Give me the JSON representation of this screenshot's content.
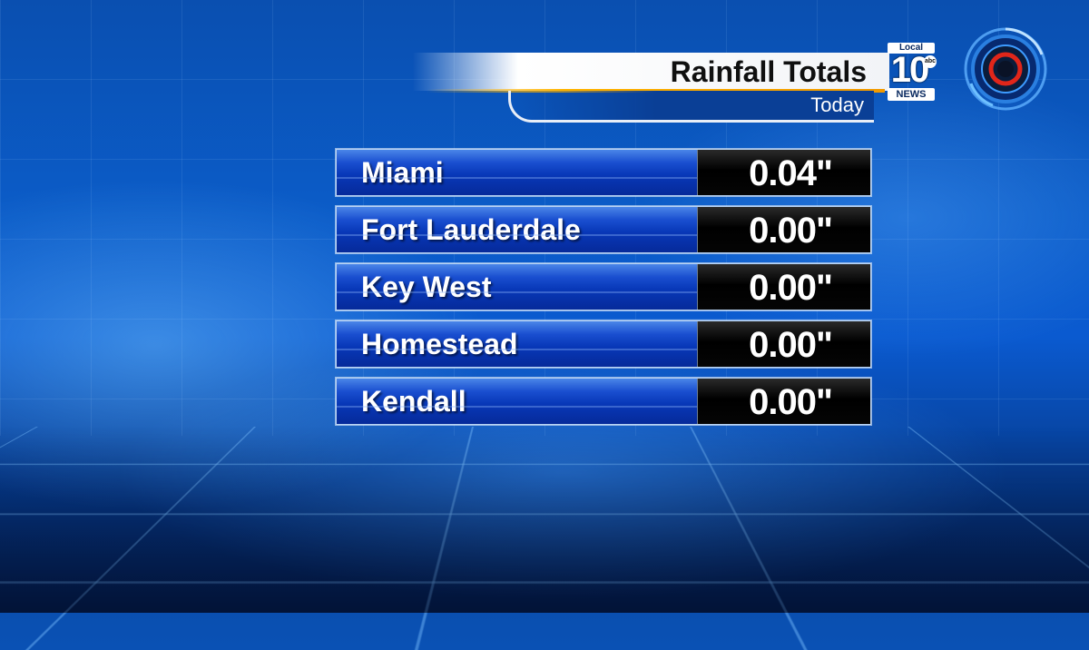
{
  "header": {
    "title": "Rainfall Totals",
    "subtitle": "Today"
  },
  "logo": {
    "local_label": "Local",
    "channel_number": "10",
    "network": "abc",
    "news_label": "NEWS"
  },
  "rainfall": {
    "rows": [
      {
        "city": "Miami",
        "amount": "0.04\""
      },
      {
        "city": "Fort Lauderdale",
        "amount": "0.00\""
      },
      {
        "city": "Key West",
        "amount": "0.00\""
      },
      {
        "city": "Homestead",
        "amount": "0.00\""
      },
      {
        "city": "Kendall",
        "amount": "0.00\""
      }
    ]
  },
  "colors": {
    "row_blue": "#0838b8",
    "value_black": "#000000",
    "accent_orange": "#ffb400",
    "background_blue": "#0b5cc8"
  },
  "icons": {
    "radar": "radar-target-icon"
  }
}
